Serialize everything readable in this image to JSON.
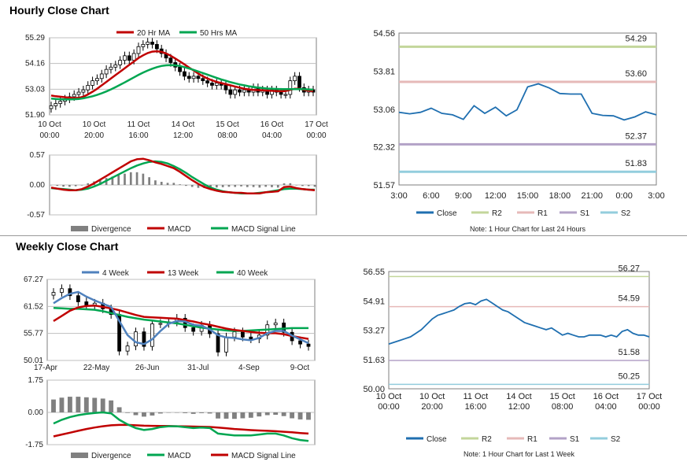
{
  "sections": {
    "hourly_title": "Hourly Close Chart",
    "weekly_title": "Weekly Close Chart"
  },
  "colors": {
    "ma_short": "#c00000",
    "ma_long": "#00a651",
    "close": "#1f6fb0",
    "r2": "#c3d69b",
    "r1": "#e6b9b8",
    "s1": "#b3a2c7",
    "s2": "#93cddd",
    "week4": "#4f81bd",
    "divergence": "#808080"
  },
  "chart_data": [
    {
      "id": "hourly_price",
      "type": "candlestick",
      "legend": [
        "20 Hr MA",
        "50 Hrs MA"
      ],
      "yticks": [
        "55.29",
        "54.16",
        "53.03",
        "51.90"
      ],
      "ylim": [
        51.9,
        55.29
      ],
      "xticks": [
        [
          "10 Oct",
          "00:00"
        ],
        [
          "10 Oct",
          "20:00"
        ],
        [
          "11 Oct",
          "16:00"
        ],
        [
          "14 Oct",
          "12:00"
        ],
        [
          "15 Oct",
          "08:00"
        ],
        [
          "16 Oct",
          "04:00"
        ],
        [
          "17 Oct",
          "00:00"
        ]
      ],
      "close": [
        52.3,
        52.4,
        52.5,
        52.6,
        52.7,
        52.8,
        52.9,
        53.0,
        53.2,
        53.4,
        53.5,
        53.7,
        53.9,
        54.0,
        54.1,
        54.3,
        54.5,
        54.3,
        54.6,
        54.9,
        55.0,
        55.1,
        55.0,
        54.8,
        54.6,
        54.4,
        54.2,
        54.0,
        53.8,
        53.6,
        53.5,
        53.6,
        53.5,
        53.4,
        53.3,
        53.2,
        53.3,
        53.2,
        53.0,
        52.8,
        53.0,
        52.9,
        53.0,
        52.9,
        53.1,
        52.9,
        53.0,
        52.8,
        53.0,
        52.9,
        52.8,
        52.8,
        53.4,
        53.6,
        53.1,
        52.9,
        53.0,
        52.9
      ],
      "ma20": [
        52.75,
        52.72,
        52.7,
        52.68,
        52.65,
        52.64,
        52.65,
        52.7,
        52.8,
        52.92,
        53.05,
        53.2,
        53.35,
        53.5,
        53.65,
        53.8,
        53.95,
        54.1,
        54.25,
        54.4,
        54.52,
        54.62,
        54.68,
        54.7,
        54.67,
        54.6,
        54.5,
        54.38,
        54.25,
        54.12,
        53.98,
        53.85,
        53.72,
        53.6,
        53.5,
        53.42,
        53.35,
        53.3,
        53.25,
        53.2,
        53.15,
        53.1,
        53.05,
        53.02,
        53.0,
        52.99,
        52.98,
        52.97,
        52.96,
        52.95,
        52.94,
        52.95,
        53.0,
        53.05,
        53.05,
        53.0,
        52.97,
        52.95
      ],
      "ma50": [
        52.62,
        52.6,
        52.59,
        52.58,
        52.58,
        52.59,
        52.6,
        52.63,
        52.67,
        52.72,
        52.78,
        52.85,
        52.93,
        53.02,
        53.12,
        53.22,
        53.33,
        53.44,
        53.55,
        53.66,
        53.76,
        53.85,
        53.93,
        54.0,
        54.05,
        54.08,
        54.09,
        54.08,
        54.05,
        54.0,
        53.94,
        53.88,
        53.81,
        53.74,
        53.67,
        53.6,
        53.53,
        53.46,
        53.4,
        53.34,
        53.29,
        53.24,
        53.2,
        53.16,
        53.13,
        53.1,
        53.08,
        53.06,
        53.05,
        53.04,
        53.03,
        53.03,
        53.03,
        53.03,
        53.03,
        53.03,
        53.02,
        53.01
      ]
    },
    {
      "id": "hourly_macd",
      "type": "macd",
      "legend": [
        "Divergence",
        "MACD",
        "MACD Signal Line"
      ],
      "yticks": [
        "0.57",
        "0.00",
        "-0.57"
      ],
      "ylim": [
        -0.57,
        0.57
      ],
      "macd": [
        -0.05,
        -0.07,
        -0.09,
        -0.1,
        -0.1,
        -0.08,
        -0.03,
        0.03,
        0.1,
        0.17,
        0.24,
        0.31,
        0.38,
        0.45,
        0.49,
        0.5,
        0.47,
        0.43,
        0.4,
        0.36,
        0.32,
        0.25,
        0.17,
        0.09,
        0.02,
        -0.04,
        -0.08,
        -0.11,
        -0.13,
        -0.14,
        -0.15,
        -0.15,
        -0.16,
        -0.16,
        -0.16,
        -0.14,
        -0.13,
        -0.12,
        -0.04,
        -0.03,
        -0.06,
        -0.08,
        -0.09,
        -0.1
      ],
      "signal": [
        -0.06,
        -0.07,
        -0.08,
        -0.09,
        -0.1,
        -0.09,
        -0.07,
        -0.03,
        0.02,
        0.08,
        0.14,
        0.2,
        0.26,
        0.32,
        0.37,
        0.41,
        0.44,
        0.45,
        0.44,
        0.41,
        0.36,
        0.3,
        0.23,
        0.15,
        0.08,
        0.01,
        -0.05,
        -0.09,
        -0.12,
        -0.14,
        -0.15,
        -0.16,
        -0.16,
        -0.16,
        -0.15,
        -0.14,
        -0.12,
        -0.1,
        -0.08,
        -0.07,
        -0.07,
        -0.08,
        -0.09,
        -0.09
      ]
    },
    {
      "id": "hourly_close",
      "type": "line",
      "legend": [
        "Close",
        "R2",
        "R1",
        "S1",
        "S2"
      ],
      "yticks": [
        "54.56",
        "53.81",
        "53.06",
        "52.32",
        "51.57"
      ],
      "ylim": [
        51.57,
        54.56
      ],
      "xticks": [
        "3:00",
        "6:00",
        "9:00",
        "12:00",
        "15:00",
        "18:00",
        "21:00",
        "0:00",
        "3:00"
      ],
      "close": [
        53.0,
        52.97,
        53.0,
        53.08,
        52.98,
        52.95,
        52.86,
        53.13,
        52.98,
        53.1,
        52.93,
        53.05,
        53.5,
        53.56,
        53.48,
        53.37,
        53.36,
        53.36,
        52.98,
        52.94,
        52.93,
        52.85,
        52.91,
        53.01,
        52.95
      ],
      "levels": [
        {
          "name": "R2",
          "value": 54.29,
          "label": "54.29"
        },
        {
          "name": "R1",
          "value": 53.6,
          "label": "53.60"
        },
        {
          "name": "S1",
          "value": 52.37,
          "label": "52.37"
        },
        {
          "name": "S2",
          "value": 51.83,
          "label": "51.83"
        }
      ],
      "note": "Note: 1 Hour Chart for Last 24 Hours"
    },
    {
      "id": "weekly_price",
      "type": "candlestick",
      "legend": [
        "4 Week",
        "13 Week",
        "40 Week"
      ],
      "yticks": [
        "67.27",
        "61.52",
        "55.77",
        "50.01"
      ],
      "ylim": [
        50.01,
        67.27
      ],
      "xticks": [
        "17-Apr",
        "22-May",
        "26-Jun",
        "31-Jul",
        "4-Sep",
        "9-Oct"
      ],
      "close": [
        64.5,
        65.3,
        63.8,
        62.5,
        61.8,
        62.2,
        61.0,
        59.8,
        52.0,
        53.1,
        56.1,
        53.0,
        57.8,
        57.9,
        58.2,
        59.0,
        57.0,
        56.2,
        57.5,
        55.7,
        51.8,
        55.0,
        56.1,
        55.0,
        54.6,
        55.4,
        57.6,
        58.0,
        56.0,
        54.2,
        53.5,
        53.0
      ],
      "wk4": [
        62.2,
        63.3,
        64.2,
        64.6,
        63.6,
        62.8,
        62.1,
        61.4,
        58.4,
        55.4,
        53.9,
        53.5,
        54.5,
        56.3,
        57.8,
        58.4,
        58.3,
        57.6,
        57.4,
        56.6,
        55.4,
        54.9,
        54.8,
        54.5,
        54.3,
        54.8,
        55.8,
        56.3,
        56.3,
        55.3,
        54.5,
        53.7
      ],
      "wk13": [
        58.4,
        59.5,
        60.6,
        61.3,
        61.6,
        61.7,
        61.4,
        61.1,
        60.7,
        60.2,
        59.7,
        59.3,
        59.2,
        59.1,
        59.0,
        58.9,
        58.6,
        58.3,
        57.9,
        57.6,
        57.2,
        56.8,
        56.5,
        56.3,
        56.1,
        55.9,
        55.8,
        55.8,
        55.6,
        55.2,
        54.9,
        54.6
      ],
      "wk40": [
        61.2,
        61.1,
        61.0,
        61.0,
        60.9,
        60.8,
        60.5,
        60.1,
        59.7,
        59.3,
        59.0,
        58.7,
        58.5,
        58.3,
        58.1,
        57.9,
        57.6,
        57.3,
        57.0,
        56.8,
        56.6,
        56.4,
        56.3,
        56.3,
        56.4,
        56.5,
        56.6,
        56.7,
        56.8,
        56.9,
        56.9,
        56.9
      ]
    },
    {
      "id": "weekly_macd",
      "type": "macd",
      "legend": [
        "Divergence",
        "MACD",
        "MACD Signal Line"
      ],
      "yticks": [
        "1.75",
        "0.00",
        "-1.75"
      ],
      "ylim": [
        -1.75,
        1.75
      ],
      "macd": [
        -0.6,
        -0.4,
        -0.25,
        -0.15,
        -0.08,
        -0.03,
        0.0,
        -0.05,
        -0.4,
        -0.65,
        -0.85,
        -0.95,
        -0.9,
        -0.8,
        -0.75,
        -0.75,
        -0.8,
        -0.85,
        -0.82,
        -0.85,
        -1.15,
        -1.2,
        -1.25,
        -1.25,
        -1.25,
        -1.2,
        -1.15,
        -1.15,
        -1.25,
        -1.4,
        -1.5,
        -1.55
      ],
      "signal": [
        -1.3,
        -1.2,
        -1.1,
        -1.0,
        -0.9,
        -0.82,
        -0.75,
        -0.7,
        -0.68,
        -0.68,
        -0.7,
        -0.72,
        -0.73,
        -0.74,
        -0.74,
        -0.75,
        -0.76,
        -0.77,
        -0.78,
        -0.79,
        -0.82,
        -0.86,
        -0.9,
        -0.93,
        -0.96,
        -0.98,
        -1.0,
        -1.02,
        -1.05,
        -1.08,
        -1.12,
        -1.15
      ],
      "divergence": [
        0.7,
        0.8,
        0.85,
        0.85,
        0.82,
        0.79,
        0.75,
        0.65,
        0.28,
        -0.03,
        -0.15,
        -0.23,
        -0.17,
        -0.06,
        -0.01,
        0.0,
        -0.04,
        -0.08,
        -0.04,
        -0.06,
        -0.33,
        -0.34,
        -0.35,
        -0.32,
        -0.29,
        -0.22,
        -0.15,
        -0.13,
        -0.2,
        -0.32,
        -0.38,
        -0.4
      ]
    },
    {
      "id": "weekly_close",
      "type": "line",
      "legend": [
        "Close",
        "R2",
        "R1",
        "S1",
        "S2"
      ],
      "yticks": [
        "56.55",
        "54.91",
        "53.27",
        "51.63",
        "50.00"
      ],
      "ylim": [
        50.0,
        56.55
      ],
      "xticks": [
        [
          "10 Oct",
          "00:00"
        ],
        [
          "10 Oct",
          "20:00"
        ],
        [
          "11 Oct",
          "16:00"
        ],
        [
          "14 Oct",
          "12:00"
        ],
        [
          "15 Oct",
          "08:00"
        ],
        [
          "16 Oct",
          "04:00"
        ],
        [
          "17 Oct",
          "00:00"
        ]
      ],
      "close": [
        52.5,
        52.6,
        52.7,
        52.8,
        52.9,
        53.1,
        53.3,
        53.6,
        53.9,
        54.1,
        54.2,
        54.3,
        54.4,
        54.6,
        54.75,
        54.8,
        54.7,
        54.9,
        55.0,
        54.8,
        54.6,
        54.4,
        54.3,
        54.1,
        53.9,
        53.7,
        53.6,
        53.5,
        53.4,
        53.3,
        53.4,
        53.2,
        53.0,
        53.1,
        53.0,
        52.9,
        52.9,
        53.0,
        53.0,
        53.0,
        52.9,
        53.0,
        52.9,
        53.2,
        53.3,
        53.1,
        53.0,
        53.0,
        52.9
      ],
      "levels": [
        {
          "name": "R2",
          "value": 56.27,
          "label": "56.27"
        },
        {
          "name": "R1",
          "value": 54.59,
          "label": "54.59"
        },
        {
          "name": "S1",
          "value": 51.58,
          "label": "51.58"
        },
        {
          "name": "S2",
          "value": 50.25,
          "label": "50.25"
        }
      ],
      "note": "Note: 1 Hour Chart for Last 1 Week"
    }
  ]
}
